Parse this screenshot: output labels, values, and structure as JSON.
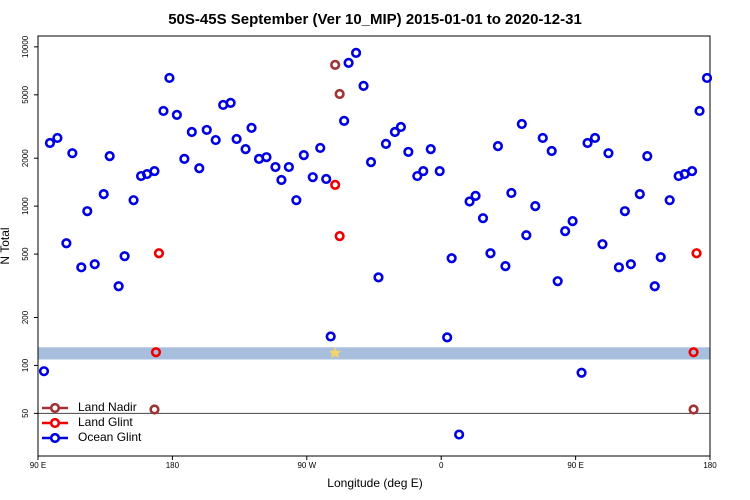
{
  "chart_data": {
    "type": "scatter",
    "title": "50S-45S September (Ver 10_MIP)   2015-01-01 to 2020-12-31",
    "x_label": "Longitude (deg E)",
    "y_label": "N Total",
    "xlim": [
      90,
      540
    ],
    "ylim": [
      27,
      11700
    ],
    "log_y": true,
    "xticks": [
      {
        "value": 90,
        "label": "90 E"
      },
      180,
      {
        "value": 270,
        "label": "90 W"
      },
      {
        "value": 360,
        "label": "0"
      },
      {
        "value": 450,
        "label": "90 E"
      },
      {
        "value": 540,
        "label": "180"
      }
    ],
    "yticks": [
      50,
      100,
      200,
      500,
      1000,
      2000,
      5000,
      10000
    ],
    "band": [
      109,
      130
    ],
    "band_color": "#a7bfdd",
    "hline": 50,
    "legend": "bottom-left",
    "series": [
      {
        "name": "Land Nadir",
        "color": "#a03434",
        "x": [
          168,
          289,
          292,
          529
        ],
        "values": [
          52.9,
          7710,
          5060,
          52.9
        ]
      },
      {
        "name": "Land Glint",
        "color": "#f00000",
        "x": [
          169,
          171,
          289,
          292,
          529,
          531
        ],
        "values": [
          121,
          506,
          1360,
          648,
          121,
          506
        ]
      },
      {
        "name": "Ocean Glint",
        "color": "#0000e0",
        "x": [
          94,
          98,
          103,
          109,
          113,
          119,
          123,
          128,
          134,
          138,
          144,
          148,
          154,
          159,
          163,
          168,
          174,
          178,
          183,
          188,
          193,
          198,
          203,
          209,
          214,
          219,
          223,
          229,
          233,
          238,
          243,
          249,
          253,
          258,
          263,
          268,
          274,
          279,
          283,
          286,
          295,
          298,
          303,
          308,
          313,
          318,
          323,
          329,
          333,
          338,
          344,
          348,
          353,
          359,
          364,
          367,
          372,
          379,
          383,
          388,
          393,
          398,
          403,
          407,
          414,
          417,
          423,
          428,
          434,
          438,
          443,
          448,
          454,
          458,
          463,
          468,
          472,
          479,
          483,
          487,
          493,
          498,
          503,
          507,
          513,
          519,
          523,
          528,
          533,
          538
        ],
        "values": [
          92,
          2490,
          2680,
          585,
          2150,
          413,
          930,
          432,
          1190,
          2060,
          314,
          485,
          1090,
          1545,
          1590,
          1660,
          3960,
          6380,
          3740,
          1980,
          2920,
          1730,
          3010,
          2600,
          4320,
          4450,
          2640,
          2280,
          3100,
          1980,
          2030,
          1760,
          1460,
          1760,
          1090,
          2090,
          1520,
          2320,
          1480,
          152,
          3430,
          7930,
          9170,
          5690,
          1890,
          357,
          2460,
          2920,
          3140,
          2190,
          1545,
          1660,
          2280,
          1660,
          150,
          471,
          36.8,
          1070,
          1160,
          840,
          506,
          2380,
          420,
          1210,
          3280,
          657,
          1000,
          2680,
          2220,
          338,
          697,
          805,
          90,
          2490,
          2680,
          577,
          2150,
          413,
          930,
          432,
          1190,
          2060,
          314,
          478,
          1090,
          1545,
          1590,
          1660,
          3960,
          6380
        ]
      }
    ]
  }
}
